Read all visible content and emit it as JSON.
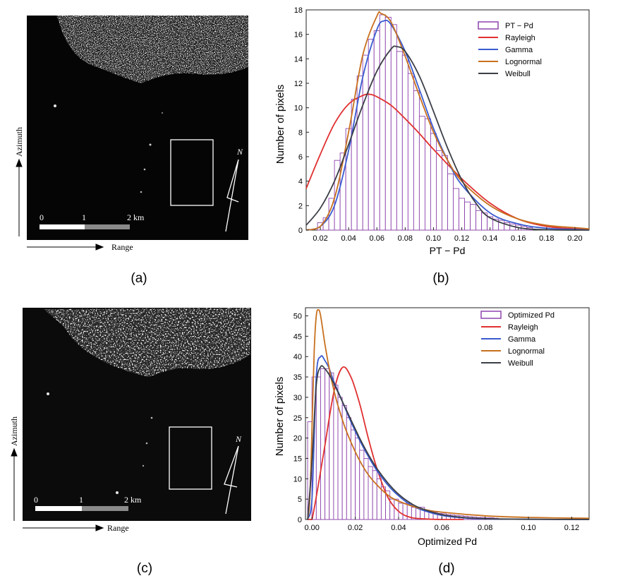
{
  "panels": {
    "a": {
      "label": "(a)",
      "azimuth": "Azimuth",
      "range": "Range",
      "scale_ticks": [
        "0",
        "1",
        "2 km"
      ],
      "north": "N"
    },
    "b": {
      "label": "(b)"
    },
    "c": {
      "label": "(c)",
      "azimuth": "Azimuth",
      "range": "Range",
      "scale_ticks": [
        "0",
        "1",
        "2 km"
      ],
      "north": "N"
    },
    "d": {
      "label": "(d)"
    }
  },
  "chart_data": [
    {
      "type": "bar",
      "panel": "(b)",
      "xlabel": "PT − Pd",
      "ylabel": "Number of pixels",
      "xlim": [
        0.01,
        0.21
      ],
      "ylim": [
        0,
        18
      ],
      "xticks": [
        "0.02",
        "0.04",
        "0.06",
        "0.08",
        "0.10",
        "0.12",
        "0.14",
        "0.16",
        "0.18",
        "0.20"
      ],
      "yticks": [
        "0",
        "2",
        "4",
        "6",
        "8",
        "10",
        "12",
        "14",
        "16",
        "18"
      ],
      "legend_position": "top-right",
      "histogram": {
        "name": "PT − Pd",
        "color": "#8e44ad",
        "bin_width": 0.004,
        "x": [
          0.02,
          0.024,
          0.028,
          0.032,
          0.036,
          0.04,
          0.044,
          0.048,
          0.052,
          0.056,
          0.06,
          0.064,
          0.068,
          0.072,
          0.076,
          0.08,
          0.084,
          0.088,
          0.092,
          0.096,
          0.1,
          0.104,
          0.108,
          0.112,
          0.116,
          0.12,
          0.124,
          0.128,
          0.132,
          0.136,
          0.14,
          0.144,
          0.148,
          0.152,
          0.156,
          0.16,
          0.164,
          0.168
        ],
        "values": [
          0.6,
          1.0,
          2.6,
          5.7,
          6.3,
          8.3,
          10.7,
          12.6,
          14.3,
          15.6,
          16.3,
          17.6,
          17.4,
          16.8,
          14.6,
          14.3,
          12.8,
          11.4,
          9.3,
          9.1,
          7.9,
          6.5,
          6.1,
          4.6,
          3.4,
          2.6,
          2.3,
          2.1,
          1.6,
          1.4,
          1.1,
          0.9,
          0.8,
          0.6,
          0.5,
          0.4,
          0.3,
          0.2
        ]
      },
      "series": [
        {
          "name": "Rayleigh",
          "color": "#e03030",
          "x": [
            0.01,
            0.02,
            0.03,
            0.04,
            0.05,
            0.055,
            0.06,
            0.07,
            0.08,
            0.09,
            0.1,
            0.12,
            0.14,
            0.16,
            0.18,
            0.2,
            0.21
          ],
          "values": [
            3.4,
            6.2,
            8.7,
            10.3,
            11.0,
            11.1,
            10.9,
            10.2,
            9.1,
            7.9,
            6.6,
            4.2,
            2.2,
            0.9,
            0.3,
            0.1,
            0.05
          ]
        },
        {
          "name": "Gamma",
          "color": "#3a5bd0",
          "x": [
            0.01,
            0.02,
            0.03,
            0.04,
            0.05,
            0.06,
            0.065,
            0.07,
            0.08,
            0.09,
            0.1,
            0.11,
            0.12,
            0.14,
            0.16,
            0.18,
            0.2,
            0.21
          ],
          "values": [
            0.0,
            0.3,
            2.0,
            6.5,
            12.5,
            16.4,
            17.1,
            16.8,
            14.6,
            11.5,
            8.3,
            5.7,
            3.7,
            1.4,
            0.5,
            0.15,
            0.05,
            0.02
          ]
        },
        {
          "name": "Lognormal",
          "color": "#c8701e",
          "x": [
            0.01,
            0.02,
            0.03,
            0.04,
            0.05,
            0.06,
            0.063,
            0.07,
            0.08,
            0.09,
            0.1,
            0.11,
            0.12,
            0.14,
            0.16,
            0.18,
            0.2,
            0.21
          ],
          "values": [
            0.0,
            0.3,
            2.6,
            8.0,
            14.3,
            17.5,
            17.7,
            17.0,
            14.2,
            11.0,
            8.0,
            5.7,
            4.0,
            2.0,
            0.9,
            0.4,
            0.2,
            0.1
          ]
        },
        {
          "name": "Weibull",
          "color": "#3b3f46",
          "x": [
            0.01,
            0.02,
            0.03,
            0.04,
            0.05,
            0.06,
            0.07,
            0.074,
            0.08,
            0.09,
            0.1,
            0.11,
            0.12,
            0.13,
            0.14,
            0.16,
            0.18,
            0.2,
            0.21
          ],
          "values": [
            0.4,
            1.8,
            4.0,
            7.0,
            10.2,
            13.0,
            14.8,
            15.0,
            14.6,
            12.6,
            9.7,
            6.7,
            4.1,
            2.2,
            1.0,
            0.2,
            0.03,
            0.0,
            0.0
          ]
        }
      ]
    },
    {
      "type": "bar",
      "panel": "(d)",
      "xlabel": "Optimized Pd",
      "ylabel": "Number of pixels",
      "xlim": [
        -0.003,
        0.128
      ],
      "ylim": [
        0,
        52
      ],
      "xticks": [
        "0.00",
        "0.02",
        "0.04",
        "0.06",
        "0.08",
        "0.10",
        "0.12"
      ],
      "yticks": [
        "0",
        "5",
        "10",
        "15",
        "20",
        "25",
        "30",
        "35",
        "40",
        "45",
        "50"
      ],
      "legend_position": "top-right",
      "histogram": {
        "name": "Optimized Pd",
        "color": "#8e44ad",
        "bin_width": 0.002,
        "x": [
          -0.001,
          0.001,
          0.003,
          0.005,
          0.007,
          0.009,
          0.011,
          0.013,
          0.015,
          0.017,
          0.019,
          0.021,
          0.023,
          0.025,
          0.027,
          0.029,
          0.031,
          0.033,
          0.035,
          0.037,
          0.039,
          0.041,
          0.043,
          0.045,
          0.047,
          0.049,
          0.051,
          0.053,
          0.055,
          0.057,
          0.059,
          0.061,
          0.063,
          0.065,
          0.067,
          0.069,
          0.071,
          0.073,
          0.075,
          0.077,
          0.079,
          0.081,
          0.083,
          0.085
        ],
        "values": [
          24,
          35,
          35,
          37,
          37,
          36,
          33,
          30,
          28,
          25,
          22,
          20,
          17,
          15,
          13,
          12,
          10,
          8,
          7,
          5,
          5,
          4,
          4,
          4,
          3,
          3,
          3,
          2,
          2,
          1.8,
          1.5,
          1.4,
          1.2,
          1.1,
          1.0,
          0.9,
          0.8,
          0.7,
          0.6,
          0.5,
          0.5,
          0.4,
          0.4,
          0.3
        ]
      },
      "series": [
        {
          "name": "Rayleigh",
          "color": "#e03030",
          "x": [
            -0.002,
            0.0,
            0.005,
            0.01,
            0.014,
            0.018,
            0.022,
            0.026,
            0.03,
            0.035,
            0.04,
            0.045,
            0.05,
            0.06,
            0.07
          ],
          "values": [
            0,
            0,
            15,
            31,
            37.3,
            35,
            28.5,
            20,
            12.5,
            5.5,
            2.0,
            0.6,
            0.2,
            0.0,
            0.0
          ]
        },
        {
          "name": "Gamma",
          "color": "#3a5bd0",
          "x": [
            -0.002,
            0.0,
            0.002,
            0.004,
            0.006,
            0.008,
            0.01,
            0.014,
            0.018,
            0.022,
            0.026,
            0.03,
            0.035,
            0.04,
            0.045,
            0.05,
            0.06,
            0.07,
            0.08,
            0.1,
            0.128
          ],
          "values": [
            0,
            5,
            35,
            40,
            39,
            37,
            34,
            29,
            24,
            19.5,
            15.5,
            12,
            8.5,
            5.8,
            3.8,
            2.5,
            1.0,
            0.4,
            0.15,
            0.05,
            0.0
          ]
        },
        {
          "name": "Lognormal",
          "color": "#c8701e",
          "x": [
            -0.002,
            -0.001,
            0.0,
            0.001,
            0.002,
            0.003,
            0.004,
            0.006,
            0.008,
            0.01,
            0.012,
            0.015,
            0.018,
            0.022,
            0.026,
            0.03,
            0.035,
            0.04,
            0.05,
            0.06,
            0.08,
            0.1,
            0.128
          ],
          "values": [
            0,
            5,
            22,
            41,
            50,
            51.5,
            50,
            43,
            37,
            32,
            28,
            23,
            19,
            14.5,
            11,
            8.5,
            6,
            4.5,
            2.7,
            1.8,
            0.9,
            0.5,
            0.3
          ]
        },
        {
          "name": "Weibull",
          "color": "#3b3f46",
          "x": [
            -0.002,
            0.0,
            0.002,
            0.004,
            0.006,
            0.008,
            0.01,
            0.014,
            0.018,
            0.022,
            0.026,
            0.03,
            0.035,
            0.04,
            0.045,
            0.05,
            0.06,
            0.07,
            0.08,
            0.1,
            0.128
          ],
          "values": [
            0,
            14,
            33,
            37.5,
            37,
            35.5,
            33.5,
            29,
            24.5,
            20,
            16,
            12.5,
            9,
            6.2,
            4.2,
            2.8,
            1.2,
            0.5,
            0.2,
            0.05,
            0.0
          ]
        }
      ]
    }
  ]
}
